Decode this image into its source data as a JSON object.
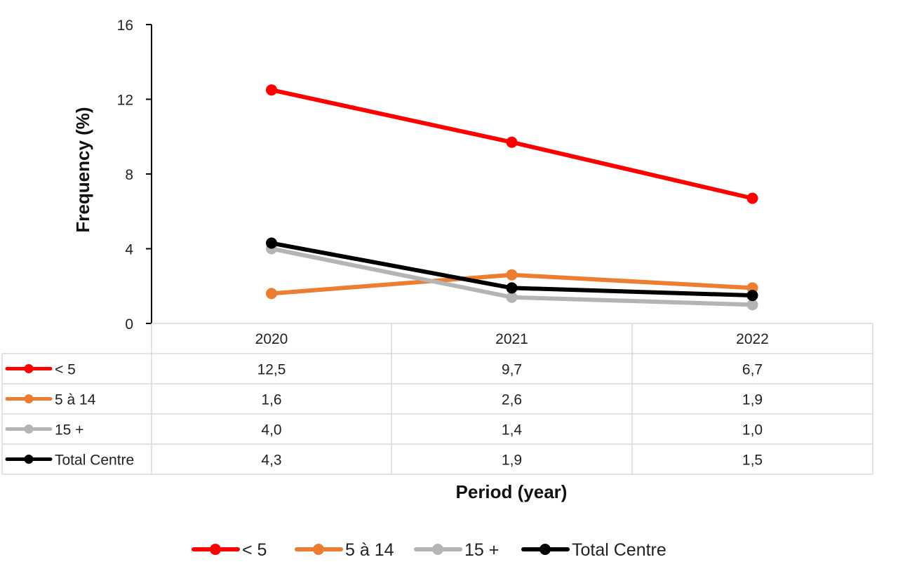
{
  "chart_data": {
    "type": "line",
    "categories": [
      "2020",
      "2021",
      "2022"
    ],
    "series": [
      {
        "name": "< 5",
        "values": [
          12.5,
          9.7,
          6.7
        ],
        "value_labels": [
          "12,5",
          "9,7",
          "6,7"
        ],
        "color": "#ff0000"
      },
      {
        "name": "5 à 14",
        "values": [
          1.6,
          2.6,
          1.9
        ],
        "value_labels": [
          "1,6",
          "2,6",
          "1,9"
        ],
        "color": "#ed7d31"
      },
      {
        "name": "15 +",
        "values": [
          4.0,
          1.4,
          1.0
        ],
        "value_labels": [
          "4,0",
          "1,4",
          "1,0"
        ],
        "color": "#b4b4b4"
      },
      {
        "name": "Total Centre",
        "values": [
          4.3,
          1.9,
          1.5
        ],
        "value_labels": [
          "4,3",
          "1,9",
          "1,5"
        ],
        "color": "#000000"
      }
    ],
    "ylabel": "Frequency (%)",
    "xlabel": "Period (year)",
    "ylim": [
      0,
      16
    ],
    "yticks": [
      0,
      4,
      8,
      12,
      16
    ],
    "grid": false,
    "data_table": true,
    "legend_position": "bottom"
  }
}
